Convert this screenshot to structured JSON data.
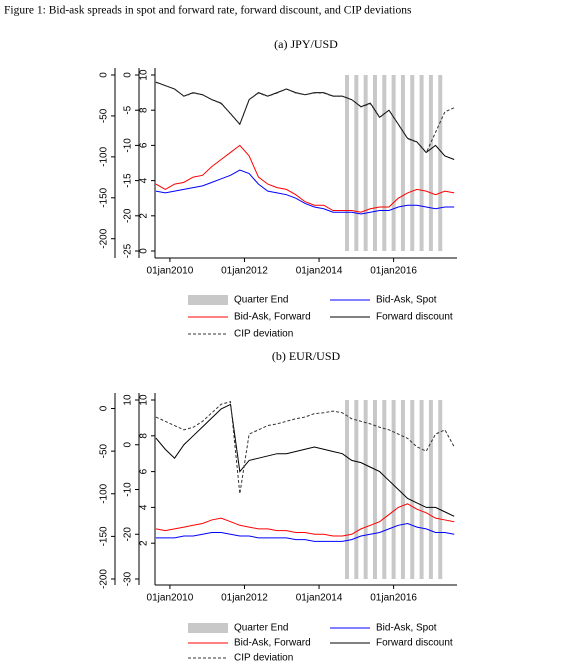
{
  "figure_title": "Figure 1: Bid-ask spreads in spot and forward rate, forward discount, and CIP deviations",
  "chart_data": [
    {
      "type": "line",
      "title": "(a) JPY/USD",
      "x": [
        2009.625,
        2009.875,
        2010.125,
        2010.375,
        2010.625,
        2010.875,
        2011.125,
        2011.375,
        2011.625,
        2011.875,
        2012.125,
        2012.375,
        2012.625,
        2012.875,
        2013.125,
        2013.375,
        2013.625,
        2013.875,
        2014.125,
        2014.375,
        2014.625,
        2014.875,
        2015.125,
        2015.375,
        2015.625,
        2015.875,
        2016.125,
        2016.375,
        2016.625,
        2016.875,
        2017.125,
        2017.375,
        2017.625
      ],
      "xlim": [
        2009.6,
        2017.7
      ],
      "xticks": [
        {
          "value": 2010,
          "label": "01jan2010"
        },
        {
          "value": 2012,
          "label": "01jan2012"
        },
        {
          "value": 2014,
          "label": "01jan2014"
        },
        {
          "value": 2016,
          "label": "01jan2016"
        }
      ],
      "ylim": [
        -215,
        0
      ],
      "yticks": [
        0,
        -50,
        -100,
        -150,
        -200
      ],
      "y2lim": [
        -25,
        0
      ],
      "y2ticks": [
        0,
        -5,
        -10,
        -15,
        -20,
        -25
      ],
      "y3lim": [
        0,
        10
      ],
      "y3ticks": [
        10,
        8,
        6,
        4,
        2,
        0
      ],
      "quarter_end": {
        "name": "Quarter End",
        "color": "#c8c8c8",
        "x": [
          2014.75,
          2015,
          2015.25,
          2015.5,
          2015.75,
          2016,
          2016.25,
          2016.5,
          2016.75,
          2017,
          2017.25
        ]
      },
      "series": [
        {
          "name": "Bid-Ask, Spot",
          "color": "#0000ff",
          "axis": "y3",
          "values": [
            3.4,
            3.3,
            3.4,
            3.5,
            3.6,
            3.7,
            3.9,
            4.1,
            4.3,
            4.6,
            4.4,
            3.8,
            3.4,
            3.3,
            3.2,
            3.0,
            2.7,
            2.5,
            2.4,
            2.2,
            2.2,
            2.2,
            2.1,
            2.2,
            2.3,
            2.3,
            2.5,
            2.6,
            2.6,
            2.5,
            2.4,
            2.5,
            2.5
          ]
        },
        {
          "name": "Bid-Ask, Forward",
          "color": "#ff0000",
          "axis": "y3",
          "values": [
            3.8,
            3.5,
            3.8,
            3.9,
            4.2,
            4.3,
            4.8,
            5.2,
            5.6,
            6.0,
            5.4,
            4.2,
            3.8,
            3.6,
            3.5,
            3.2,
            2.8,
            2.6,
            2.6,
            2.3,
            2.3,
            2.3,
            2.2,
            2.4,
            2.5,
            2.5,
            3.0,
            3.3,
            3.5,
            3.4,
            3.2,
            3.4,
            3.3
          ]
        },
        {
          "name": "Forward discount",
          "color": "#000000",
          "axis": "y2",
          "values": [
            -1,
            -1.5,
            -2,
            -3,
            -2.5,
            -2.8,
            -3.5,
            -4,
            -5.5,
            -7,
            -3.5,
            -2.5,
            -3,
            -2.5,
            -2,
            -2.5,
            -2.8,
            -2.5,
            -2.5,
            -3,
            -3,
            -3.5,
            -4.5,
            -4,
            -6,
            -5,
            -7,
            -9,
            -9.5,
            -11,
            -10,
            -11.5,
            -12
          ]
        },
        {
          "name": "CIP deviation",
          "color": "#333333",
          "dashed": true,
          "values": [
            -9,
            -13,
            -17,
            -26,
            -22,
            -24,
            -30,
            -35,
            -47,
            -60,
            -30,
            -22,
            -26,
            -22,
            -17,
            -22,
            -24,
            -22,
            -22,
            -26,
            -26,
            -30,
            -39,
            -35,
            -52,
            -43,
            -60,
            -78,
            -82,
            -95,
            -70,
            -45,
            -40
          ]
        }
      ]
    },
    {
      "type": "line",
      "title": "(b) EUR/USD",
      "x": [
        2009.625,
        2009.875,
        2010.125,
        2010.375,
        2010.625,
        2010.875,
        2011.125,
        2011.375,
        2011.625,
        2011.875,
        2012.125,
        2012.375,
        2012.625,
        2012.875,
        2013.125,
        2013.375,
        2013.625,
        2013.875,
        2014.125,
        2014.375,
        2014.625,
        2014.875,
        2015.125,
        2015.375,
        2015.625,
        2015.875,
        2016.125,
        2016.375,
        2016.625,
        2016.875,
        2017.125,
        2017.375,
        2017.625
      ],
      "xlim": [
        2009.6,
        2017.7
      ],
      "xticks": [
        {
          "value": 2010,
          "label": "01jan2010"
        },
        {
          "value": 2012,
          "label": "01jan2012"
        },
        {
          "value": 2014,
          "label": "01jan2014"
        },
        {
          "value": 2016,
          "label": "01jan2016"
        }
      ],
      "ylim": [
        -200,
        10
      ],
      "yticks": [
        0,
        -50,
        -100,
        -150,
        -200
      ],
      "y2lim": [
        -30,
        10
      ],
      "y2ticks": [
        10,
        0,
        -10,
        -20,
        -30
      ],
      "y3lim": [
        0,
        10
      ],
      "y3ticks": [
        10,
        8,
        6,
        4,
        2
      ],
      "quarter_end": {
        "name": "Quarter End",
        "color": "#c8c8c8",
        "x": [
          2014.75,
          2015,
          2015.25,
          2015.5,
          2015.75,
          2016,
          2016.25,
          2016.5,
          2016.75,
          2017,
          2017.25
        ]
      },
      "series": [
        {
          "name": "Bid-Ask, Spot",
          "color": "#0000ff",
          "axis": "y3",
          "values": [
            2.3,
            2.3,
            2.3,
            2.4,
            2.4,
            2.5,
            2.6,
            2.6,
            2.5,
            2.4,
            2.4,
            2.3,
            2.3,
            2.3,
            2.3,
            2.2,
            2.2,
            2.1,
            2.1,
            2.1,
            2.1,
            2.2,
            2.4,
            2.5,
            2.6,
            2.8,
            3.0,
            3.1,
            2.9,
            2.8,
            2.6,
            2.6,
            2.5
          ]
        },
        {
          "name": "Bid-Ask, Forward",
          "color": "#ff0000",
          "axis": "y3",
          "values": [
            2.8,
            2.7,
            2.8,
            2.9,
            3.0,
            3.1,
            3.3,
            3.4,
            3.2,
            3.0,
            2.9,
            2.8,
            2.8,
            2.7,
            2.7,
            2.6,
            2.6,
            2.5,
            2.5,
            2.4,
            2.4,
            2.5,
            2.8,
            3.0,
            3.2,
            3.6,
            4.0,
            4.2,
            3.9,
            3.7,
            3.4,
            3.3,
            3.2
          ]
        },
        {
          "name": "Forward discount",
          "color": "#000000",
          "axis": "y2",
          "values": [
            1.5,
            -1,
            -3,
            0,
            2,
            4,
            6,
            8,
            9,
            -6,
            -3.5,
            -3,
            -2.5,
            -2,
            -2,
            -1.5,
            -1,
            -0.5,
            -1,
            -1.5,
            -2,
            -3.5,
            -4,
            -5,
            -6,
            -8,
            -10,
            -12,
            -13,
            -14,
            -14,
            -15,
            -16
          ]
        },
        {
          "name": "CIP deviation",
          "color": "#333333",
          "dashed": true,
          "values": [
            -10,
            -15,
            -20,
            -25,
            -22,
            -15,
            -5,
            5,
            8,
            -100,
            -30,
            -25,
            -20,
            -18,
            -15,
            -12,
            -10,
            -6,
            -5,
            -3,
            -5,
            -12,
            -15,
            -18,
            -22,
            -25,
            -30,
            -35,
            -45,
            -50,
            -30,
            -25,
            -45
          ]
        }
      ]
    }
  ]
}
